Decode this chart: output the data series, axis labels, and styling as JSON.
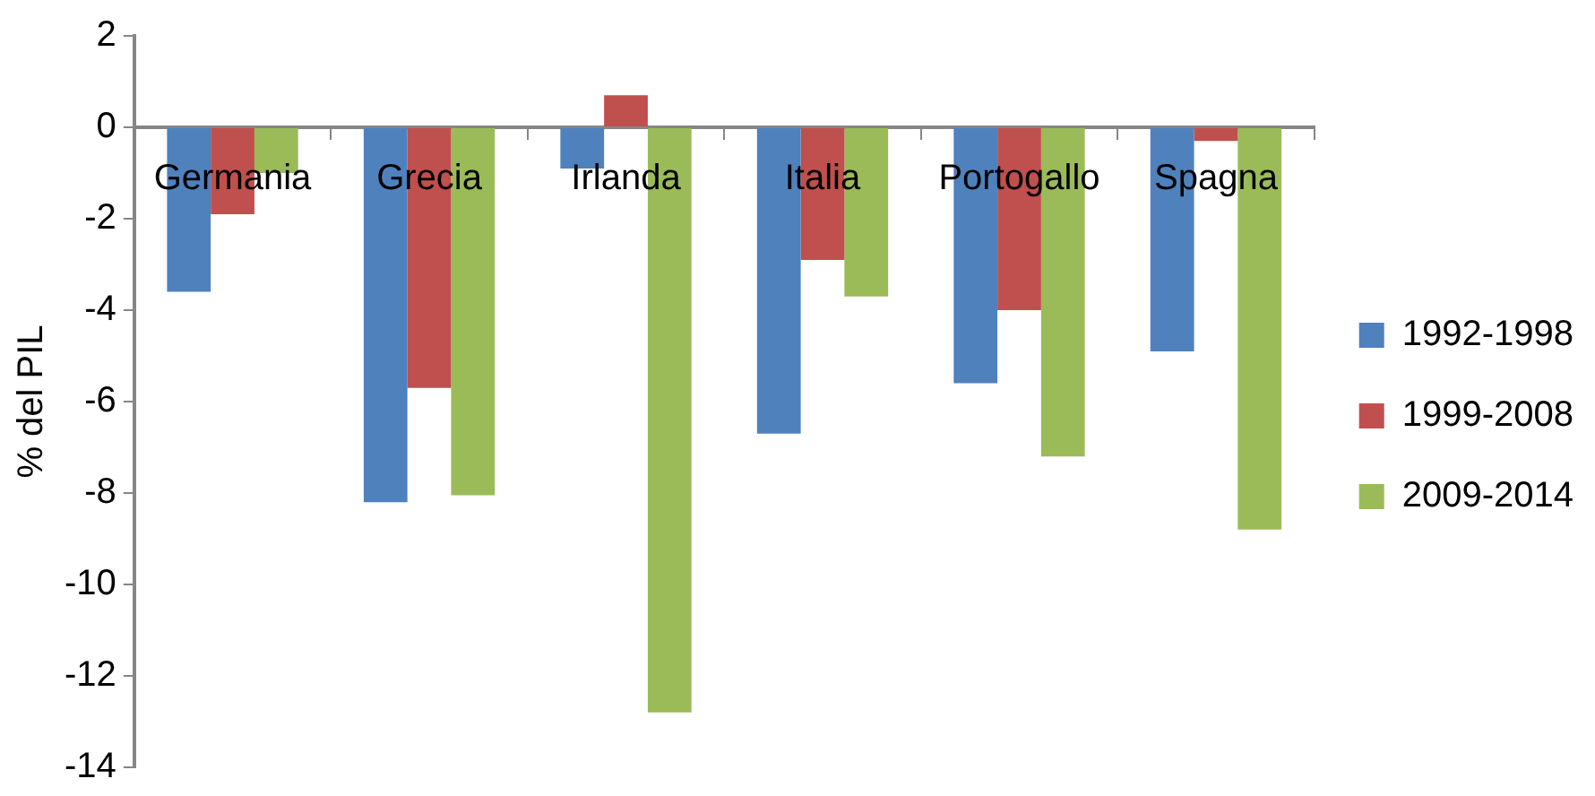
{
  "chart_data": {
    "type": "bar",
    "ylabel": "% del PIL",
    "categories": [
      "Germania",
      "Grecia",
      "Irlanda",
      "Italia",
      "Portogallo",
      "Spagna"
    ],
    "series": [
      {
        "name": "1992-1998",
        "color": "#4f81bd",
        "values": [
          -3.6,
          -8.2,
          -0.9,
          -6.7,
          -5.6,
          -4.9
        ]
      },
      {
        "name": "1999-2008",
        "color": "#c0504d",
        "values": [
          -1.9,
          -5.7,
          0.7,
          -2.9,
          -4.0,
          -0.3
        ]
      },
      {
        "name": "2009-2014",
        "color": "#9bbb59",
        "values": [
          -1.0,
          -8.05,
          -12.8,
          -3.7,
          -7.2,
          -8.8
        ]
      }
    ],
    "ylim": [
      -14,
      2
    ],
    "yticks": [
      -14,
      -12,
      -10,
      -8,
      -6,
      -4,
      -2,
      0,
      2
    ],
    "grid": false,
    "legend": "right"
  }
}
